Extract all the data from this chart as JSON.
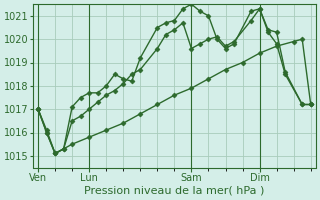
{
  "title": "",
  "xlabel": "Pression niveau de la mer( hPa )",
  "ylabel": "",
  "bg_color": "#d4eee8",
  "grid_color": "#a8ccbb",
  "line_color": "#2d6a2d",
  "ylim": [
    1014.5,
    1021.5
  ],
  "yticks": [
    1015,
    1016,
    1017,
    1018,
    1019,
    1020,
    1021
  ],
  "day_labels": [
    "Ven",
    "Lun",
    "Sam",
    "Dim"
  ],
  "day_positions": [
    0,
    3,
    9,
    13
  ],
  "xlim": [
    -0.3,
    16.3
  ],
  "series1": [
    [
      0,
      1017.0
    ],
    [
      0.5,
      1016.1
    ],
    [
      1,
      1015.1
    ],
    [
      1.5,
      1015.3
    ],
    [
      2,
      1017.1
    ],
    [
      2.5,
      1017.5
    ],
    [
      3,
      1017.7
    ],
    [
      3.5,
      1017.7
    ],
    [
      4,
      1018.0
    ],
    [
      4.5,
      1018.5
    ],
    [
      5,
      1018.3
    ],
    [
      5.5,
      1018.2
    ],
    [
      6,
      1019.2
    ],
    [
      7,
      1020.5
    ],
    [
      7.5,
      1020.7
    ],
    [
      8,
      1020.8
    ],
    [
      8.5,
      1021.3
    ],
    [
      9,
      1021.5
    ],
    [
      9.5,
      1021.2
    ],
    [
      10,
      1021.0
    ],
    [
      10.5,
      1020.0
    ],
    [
      11,
      1019.6
    ],
    [
      11.5,
      1019.8
    ],
    [
      12.5,
      1021.2
    ],
    [
      13,
      1021.3
    ],
    [
      13.5,
      1020.4
    ],
    [
      14,
      1020.3
    ],
    [
      14.5,
      1018.6
    ],
    [
      15.5,
      1017.2
    ],
    [
      16,
      1017.2
    ]
  ],
  "series2": [
    [
      0,
      1017.0
    ],
    [
      0.5,
      1016.0
    ],
    [
      1,
      1015.1
    ],
    [
      2,
      1015.5
    ],
    [
      3,
      1015.8
    ],
    [
      4,
      1016.1
    ],
    [
      5,
      1016.4
    ],
    [
      6,
      1016.8
    ],
    [
      7,
      1017.2
    ],
    [
      8,
      1017.6
    ],
    [
      9,
      1017.9
    ],
    [
      10,
      1018.3
    ],
    [
      11,
      1018.7
    ],
    [
      12,
      1019.0
    ],
    [
      13,
      1019.4
    ],
    [
      14,
      1019.7
    ],
    [
      15,
      1019.9
    ],
    [
      15.5,
      1020.0
    ],
    [
      16,
      1017.2
    ]
  ],
  "series3": [
    [
      0,
      1017.0
    ],
    [
      0.5,
      1016.0
    ],
    [
      1,
      1015.1
    ],
    [
      1.5,
      1015.3
    ],
    [
      2,
      1016.5
    ],
    [
      2.5,
      1016.7
    ],
    [
      3,
      1017.0
    ],
    [
      3.5,
      1017.3
    ],
    [
      4,
      1017.6
    ],
    [
      4.5,
      1017.8
    ],
    [
      5,
      1018.1
    ],
    [
      5.5,
      1018.5
    ],
    [
      6,
      1018.7
    ],
    [
      7,
      1019.6
    ],
    [
      7.5,
      1020.2
    ],
    [
      8,
      1020.4
    ],
    [
      8.5,
      1020.7
    ],
    [
      9,
      1019.6
    ],
    [
      9.5,
      1019.8
    ],
    [
      10,
      1020.0
    ],
    [
      10.5,
      1020.1
    ],
    [
      11,
      1019.7
    ],
    [
      11.5,
      1019.9
    ],
    [
      12.5,
      1020.8
    ],
    [
      13,
      1021.3
    ],
    [
      13.5,
      1020.3
    ],
    [
      14,
      1019.8
    ],
    [
      14.5,
      1018.5
    ],
    [
      15.5,
      1017.2
    ],
    [
      16,
      1017.2
    ]
  ],
  "n_grid_cols": 16,
  "marker": "D",
  "marker_size": 2.5,
  "line_width": 1.0,
  "font_size": 8,
  "tick_font_size": 7
}
